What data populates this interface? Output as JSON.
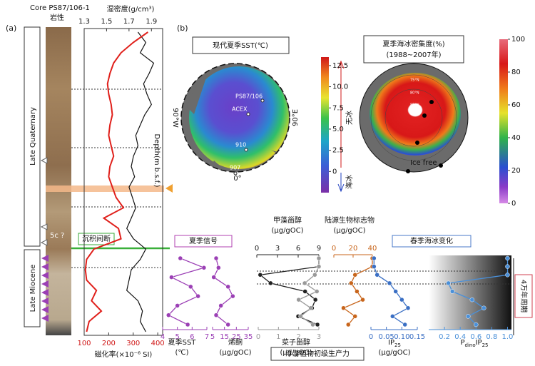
{
  "figure": {
    "panel_a": "(a)",
    "panel_b": "(b)",
    "core_title": "Core PS87/106-1",
    "lithology": "岩性",
    "units": [
      "Late Quaternary",
      "Late Miocene"
    ],
    "core_label": "5c ?",
    "hiatus": "沉积间断",
    "maps": [
      {
        "title": "现代夏季SST(℃)",
        "labels": [
          "PS87/106",
          "ACEX",
          "910",
          "907",
          "90°W",
          "90°E",
          "0°"
        ],
        "colorbar": {
          "lim": [
            -2.5,
            13.5
          ],
          "ticks": [
            0,
            2.5,
            {
              "value": 5,
              "label": "5.0"
            },
            7.5,
            {
              "value": 10,
              "label": "10.0"
            },
            12.5
          ]
        },
        "arrows": [
          "无冰",
          "海冰"
        ]
      },
      {
        "title": [
          "夏季海冰密集度(%)",
          "(1988~2007年)"
        ],
        "labels": [
          "75°N",
          "80°N",
          "85°N",
          "Ice free"
        ],
        "colorbar": {
          "lim": [
            0,
            100
          ],
          "ticks": [
            0,
            20,
            40,
            60,
            80,
            100
          ]
        }
      }
    ],
    "headers": {
      "summer": "夏季信号",
      "dino": [
        "甲藻甾醇",
        "(μg/gOC)"
      ],
      "terr": [
        "陆源生物标志物",
        "(μg/gOC)"
      ],
      "ice": "春季海冰变化",
      "prod": "浮游植物初级生产力",
      "cycle": "4万年周期"
    }
  },
  "chart_data": [
    {
      "type": "profile",
      "x_label": "磁化率(×10⁻⁶ SI)",
      "x2_label": "湿密度(g/cm³)",
      "y_label": "Depth(m b.s.f.)",
      "xlim": [
        100,
        420
      ],
      "xticks": [
        100,
        200,
        300,
        400
      ],
      "x2lim": [
        1.3,
        2.0
      ],
      "x2ticks": [
        1.3,
        1.5,
        1.7,
        1.9
      ],
      "series": [
        {
          "color": "#111111",
          "axis": "x2",
          "values": [
            1.78,
            1.85,
            1.8,
            1.92,
            1.88,
            1.83,
            1.86,
            1.9,
            1.84,
            1.8,
            1.76,
            1.78,
            1.74,
            1.72,
            1.75,
            1.7,
            1.73,
            1.76,
            1.72,
            1.68,
            1.74,
            1.85,
            1.8,
            1.72,
            1.7,
            1.68,
            1.78,
            1.82,
            1.8,
            1.85
          ]
        },
        {
          "color": "#e0201b",
          "axis": "x",
          "values": [
            360,
            300,
            250,
            220,
            205,
            195,
            200,
            210,
            215,
            205,
            200,
            210,
            220,
            205,
            200,
            215,
            230,
            260,
            180,
            240,
            250,
            140,
            110,
            105,
            110,
            150,
            130,
            170,
            120,
            110
          ]
        }
      ]
    },
    {
      "type": "line",
      "axis_position": "bottom",
      "x_label": [
        "夏季SST",
        "(℃)"
      ],
      "color": "#9b3fb5",
      "xlim": [
        4,
        7
      ],
      "xticks": [
        4,
        5,
        6,
        7
      ],
      "values": [
        5.2,
        6.8,
        4.6,
        5.9,
        6.4,
        5.0,
        4.4,
        5.7
      ]
    },
    {
      "type": "line",
      "axis_position": "bottom",
      "x_label": [
        "烯酮",
        "(μg/gOC)"
      ],
      "color": "#9b3fb5",
      "xlim": [
        5,
        35
      ],
      "xticks": [
        5,
        15,
        25,
        35
      ],
      "values": [
        8,
        10,
        6,
        18,
        22,
        12,
        8,
        18
      ]
    },
    {
      "type": "line",
      "axis_position": "top",
      "color": "#222222",
      "xlim": [
        0,
        9
      ],
      "xticks": [
        0,
        3,
        6,
        9
      ],
      "values": [
        9,
        9,
        0.5,
        2,
        7,
        8.5,
        8,
        6,
        8.8
      ]
    },
    {
      "type": "line",
      "axis_position": "bottom",
      "x_label": [
        "菜子甾醇",
        "(μg/gOC)"
      ],
      "color": "#999999",
      "xlim": [
        0,
        3
      ],
      "xticks": [
        0,
        1,
        2,
        3
      ],
      "values": [
        3,
        3,
        2.8,
        2.3,
        2.9,
        2,
        2.6,
        2.1,
        2.7
      ]
    },
    {
      "type": "line",
      "axis_position": "top",
      "color": "#c8651b",
      "xlim": [
        0,
        40
      ],
      "xticks": [
        0,
        20,
        40
      ],
      "values": [
        40,
        40,
        22,
        18,
        24,
        30,
        10,
        22,
        15
      ]
    },
    {
      "type": "line",
      "axis_position": "bottom",
      "x_label": [
        "IP",
        "25",
        "(μg/gOC)"
      ],
      "color": "#3a6fc4",
      "xlim": [
        0,
        0.15
      ],
      "xticks": [
        0,
        0.05,
        {
          "value": 0.1,
          "label": "0.10"
        },
        0.15
      ],
      "values": [
        0.01,
        0.01,
        0.02,
        0.06,
        0.08,
        0.1,
        0.12,
        0.07,
        0.11
      ]
    },
    {
      "type": "line",
      "axis_position": "bottom",
      "x_label": [
        "P",
        "dino",
        "IP",
        "25"
      ],
      "color": "#4a90d9",
      "xlim": [
        0,
        1.05
      ],
      "xticks": [
        0.2,
        0.4,
        0.6,
        0.8,
        {
          "value": 1,
          "label": "1.0"
        }
      ],
      "values": [
        1.0,
        1.0,
        1.0,
        0.25,
        0.3,
        0.55,
        0.7,
        0.5,
        0.6
      ]
    }
  ]
}
